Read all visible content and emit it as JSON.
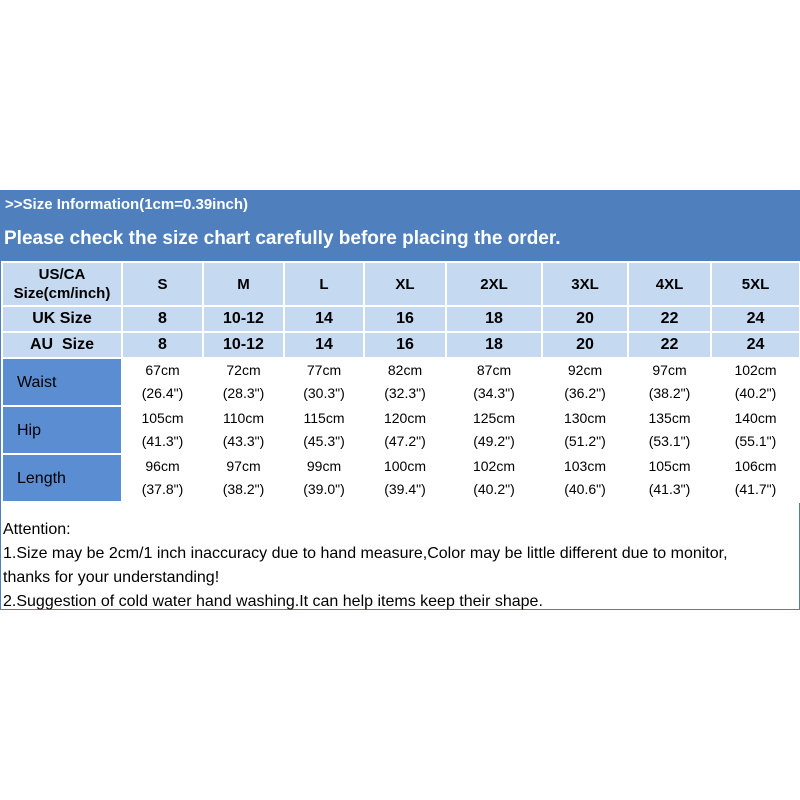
{
  "header": {
    "info": ">>Size Information(1cm=0.39inch)",
    "notice": "Please check the size chart carefully before placing the order."
  },
  "size_table": {
    "corner_line1": "US/CA",
    "corner_line2": "Size(cm/inch)",
    "sizes": [
      "S",
      "M",
      "L",
      "XL",
      "2XL",
      "3XL",
      "4XL",
      "5XL"
    ],
    "uk_label": "UK Size",
    "uk": [
      "8",
      "10-12",
      "14",
      "16",
      "18",
      "20",
      "22",
      "24"
    ],
    "au_label": "AU  Size",
    "au": [
      "8",
      "10-12",
      "14",
      "16",
      "18",
      "20",
      "22",
      "24"
    ],
    "measurements": [
      {
        "label": "Waist",
        "cm": [
          "67cm",
          "72cm",
          "77cm",
          "82cm",
          "87cm",
          "92cm",
          "97cm",
          "102cm"
        ],
        "inch": [
          "(26.4\")",
          "(28.3\")",
          "(30.3\")",
          "(32.3\")",
          "(34.3\")",
          "(36.2\")",
          "(38.2\")",
          "(40.2\")"
        ]
      },
      {
        "label": "Hip",
        "cm": [
          "105cm",
          "110cm",
          "115cm",
          "120cm",
          "125cm",
          "130cm",
          "135cm",
          "140cm"
        ],
        "inch": [
          "(41.3\")",
          "(43.3\")",
          "(45.3\")",
          "(47.2\")",
          "(49.2\")",
          "(51.2\")",
          "(53.1\")",
          "(55.1\")"
        ]
      },
      {
        "label": "Length",
        "cm": [
          "96cm",
          "97cm",
          "99cm",
          "100cm",
          "102cm",
          "103cm",
          "105cm",
          "106cm"
        ],
        "inch": [
          "(37.8\")",
          "(38.2\")",
          "(39.0\")",
          "(39.4\")",
          "(40.2\")",
          "(40.6\")",
          "(41.3\")",
          "(41.7\")"
        ]
      }
    ]
  },
  "attention": {
    "title": "Attention:",
    "line1": "1.Size may be 2cm/1 inch inaccuracy due to hand measure,Color may be little different due to monitor,",
    "line2": "thanks for your understanding!",
    "line3": "2.Suggestion of cold water hand washing.It can help items keep their shape."
  },
  "colors": {
    "header_bar": "#4f80bd",
    "label_cell": "#c5d9f1",
    "row_label": "#5b8dd3"
  }
}
